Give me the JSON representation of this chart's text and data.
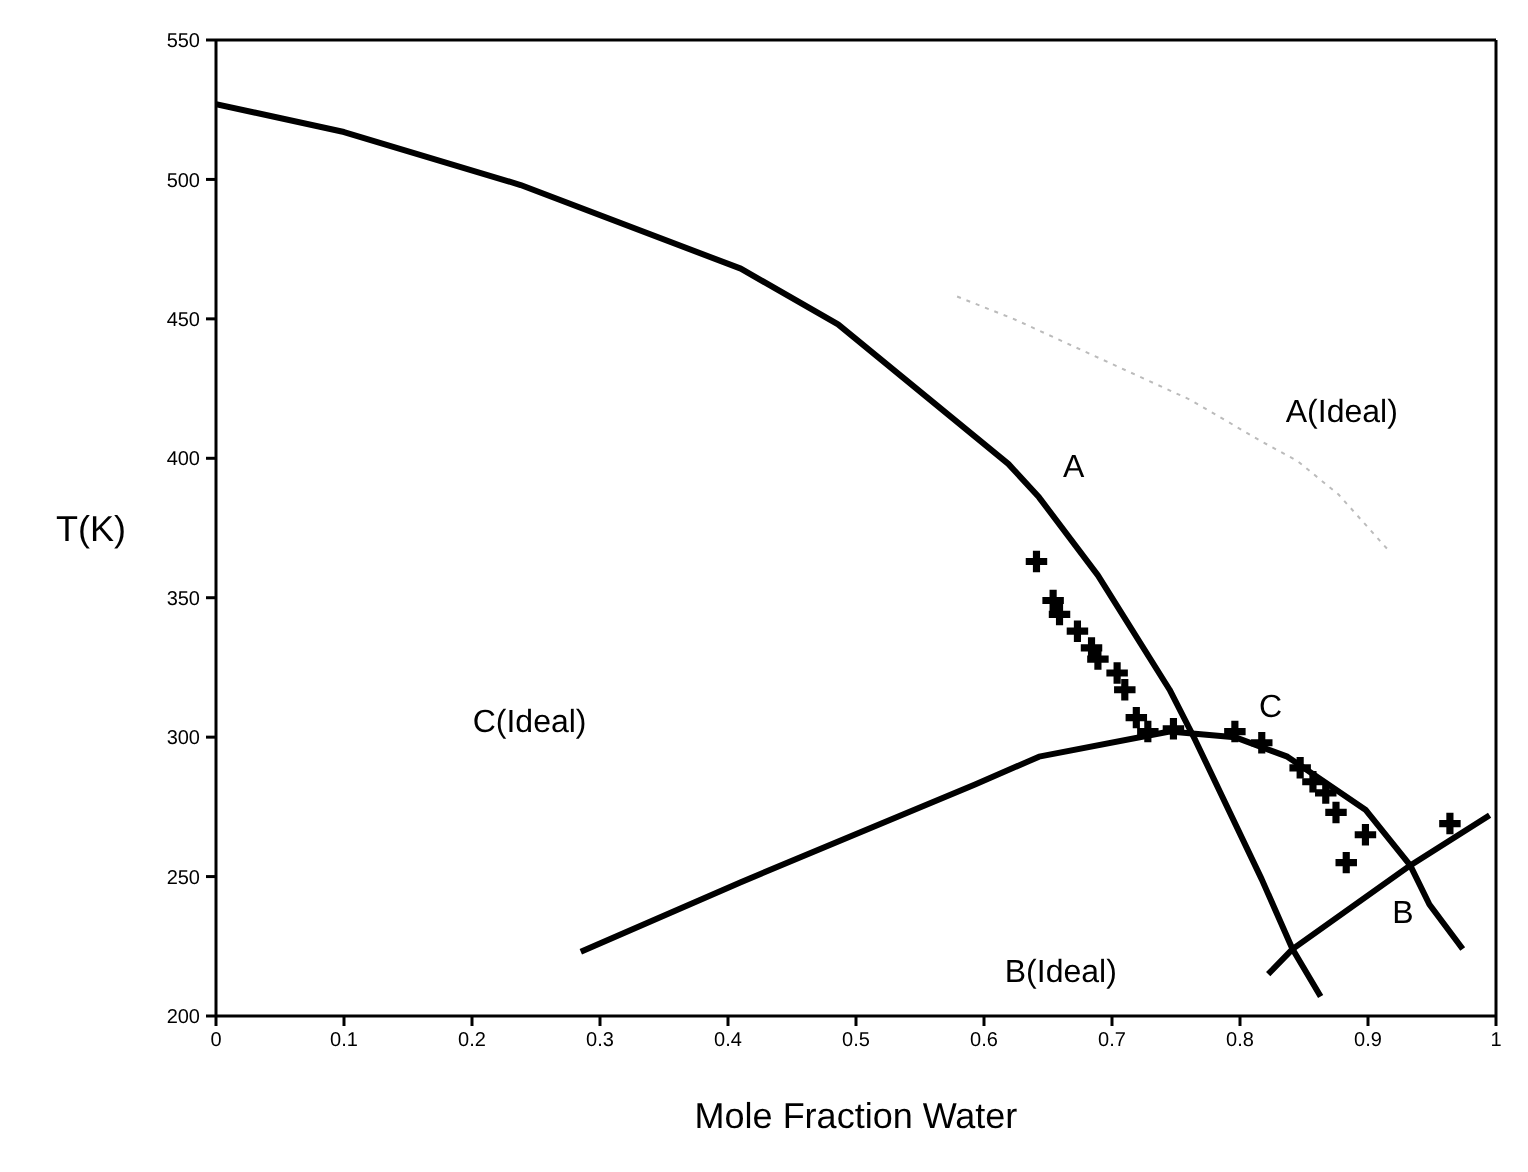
{
  "chart_data": {
    "type": "line",
    "xlabel": "Mole Fraction Water",
    "ylabel": "T(K)",
    "xlim": [
      0,
      1
    ],
    "ylim": [
      200,
      550
    ],
    "xticks": [
      0,
      0.1,
      0.2,
      0.3,
      0.4,
      0.5,
      0.6,
      0.7,
      0.8,
      0.9,
      1
    ],
    "yticks": [
      200,
      250,
      300,
      350,
      400,
      450,
      500,
      550
    ],
    "marker": "none",
    "line_style": "solid",
    "series": [
      {
        "name": "A",
        "color": "#000000",
        "x": [
          0,
          0.1,
          0.238,
          0.41,
          0.486,
          0.619,
          0.643,
          0.689,
          0.745,
          0.765,
          0.817,
          0.841,
          0.863
        ],
        "values": [
          527,
          517,
          498,
          468,
          448,
          398,
          386,
          358,
          317,
          299,
          249,
          224,
          207
        ]
      },
      {
        "name": "C",
        "color": "#000000",
        "x": [
          0.285,
          0.41,
          0.593,
          0.643,
          0.745,
          0.796,
          0.837,
          0.898,
          0.933,
          0.948,
          0.974
        ],
        "values": [
          223,
          248,
          283,
          293,
          302,
          300,
          293,
          274,
          254,
          240,
          224
        ]
      },
      {
        "name": "B",
        "color": "#000000",
        "x": [
          0.822,
          0.841,
          0.933,
          0.995
        ],
        "values": [
          215,
          224,
          254,
          272
        ]
      },
      {
        "name": "A(Ideal)",
        "color": "#bbbbbb",
        "line_style": "dotted",
        "x": [
          0.579,
          0.623,
          0.761,
          0.817,
          0.845,
          0.877,
          0.916
        ],
        "values": [
          458,
          450,
          421,
          406,
          399,
          387,
          367
        ]
      },
      {
        "type": "scatter",
        "color": "#000000",
        "marker": "cross",
        "x": [
          0.641,
          0.654,
          0.659,
          0.673,
          0.684,
          0.689,
          0.704,
          0.71,
          0.719,
          0.728,
          0.748,
          0.796,
          0.817,
          0.847,
          0.857,
          0.867,
          0.875,
          0.898,
          0.883,
          0.964
        ],
        "values": [
          363,
          349,
          344,
          338,
          332,
          328,
          323,
          317,
          307,
          302,
          303,
          302,
          298,
          289,
          284,
          280,
          273,
          265,
          255,
          269
        ]
      }
    ],
    "annotations": [
      "C(Ideal)",
      "B(Ideal)"
    ]
  }
}
